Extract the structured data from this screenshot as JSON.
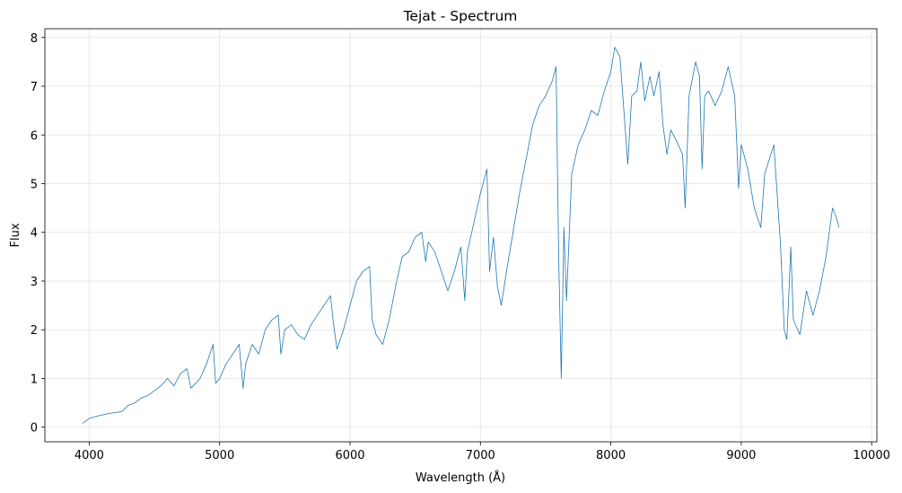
{
  "chart_data": {
    "type": "line",
    "title": "Tejat - Spectrum",
    "x_label": "Wavelength (Å)",
    "y_label": "Flux",
    "color": "#1f77b4",
    "grid": true,
    "xlim": [
      3660,
      10040
    ],
    "ylim": [
      -0.3,
      8.18
    ],
    "xticks": [
      4000,
      5000,
      6000,
      7000,
      8000,
      9000,
      10000
    ],
    "yticks": [
      0,
      1,
      2,
      3,
      4,
      5,
      6,
      7,
      8
    ],
    "x": [
      3950,
      4000,
      4050,
      4100,
      4150,
      4200,
      4250,
      4300,
      4350,
      4400,
      4450,
      4500,
      4550,
      4600,
      4650,
      4700,
      4750,
      4780,
      4850,
      4900,
      4950,
      4970,
      5000,
      5050,
      5100,
      5150,
      5180,
      5200,
      5250,
      5300,
      5350,
      5400,
      5450,
      5470,
      5500,
      5550,
      5600,
      5650,
      5700,
      5750,
      5800,
      5850,
      5870,
      5900,
      5950,
      6000,
      6050,
      6100,
      6150,
      6170,
      6200,
      6250,
      6300,
      6350,
      6400,
      6450,
      6500,
      6550,
      6580,
      6600,
      6650,
      6700,
      6750,
      6800,
      6850,
      6880,
      6900,
      6950,
      7000,
      7050,
      7070,
      7100,
      7130,
      7160,
      7200,
      7250,
      7300,
      7350,
      7400,
      7450,
      7500,
      7550,
      7580,
      7600,
      7620,
      7640,
      7660,
      7700,
      7750,
      7800,
      7850,
      7900,
      7950,
      8000,
      8030,
      8070,
      8100,
      8130,
      8160,
      8200,
      8230,
      8260,
      8300,
      8330,
      8370,
      8400,
      8430,
      8460,
      8500,
      8550,
      8570,
      8600,
      8650,
      8680,
      8700,
      8720,
      8750,
      8800,
      8850,
      8900,
      8950,
      8980,
      9000,
      9050,
      9100,
      9150,
      9180,
      9250,
      9300,
      9330,
      9350,
      9380,
      9400,
      9450,
      9500,
      9550,
      9600,
      9650,
      9700,
      9730,
      9750
    ],
    "values": [
      0.08,
      0.18,
      0.22,
      0.25,
      0.28,
      0.3,
      0.32,
      0.45,
      0.5,
      0.6,
      0.65,
      0.75,
      0.85,
      1.0,
      0.85,
      1.1,
      1.2,
      0.8,
      1.0,
      1.3,
      1.7,
      0.9,
      1.0,
      1.3,
      1.5,
      1.7,
      0.8,
      1.3,
      1.7,
      1.5,
      2.0,
      2.2,
      2.3,
      1.5,
      2.0,
      2.1,
      1.9,
      1.8,
      2.1,
      2.3,
      2.5,
      2.7,
      2.2,
      1.6,
      2.0,
      2.5,
      3.0,
      3.2,
      3.3,
      2.2,
      1.9,
      1.7,
      2.2,
      2.9,
      3.5,
      3.6,
      3.9,
      4.0,
      3.4,
      3.8,
      3.6,
      3.2,
      2.8,
      3.2,
      3.7,
      2.6,
      3.6,
      4.2,
      4.8,
      5.3,
      3.2,
      3.9,
      2.9,
      2.5,
      3.2,
      4.0,
      4.8,
      5.5,
      6.2,
      6.6,
      6.8,
      7.1,
      7.4,
      3.5,
      1.0,
      4.1,
      2.6,
      5.2,
      5.8,
      6.1,
      6.5,
      6.4,
      6.9,
      7.3,
      7.8,
      7.6,
      6.5,
      5.4,
      6.8,
      6.9,
      7.5,
      6.7,
      7.2,
      6.8,
      7.3,
      6.2,
      5.6,
      6.1,
      5.9,
      5.6,
      4.5,
      6.8,
      7.5,
      7.2,
      5.3,
      6.8,
      6.9,
      6.6,
      6.9,
      7.4,
      6.8,
      4.9,
      5.8,
      5.3,
      4.5,
      4.1,
      5.2,
      5.8,
      3.8,
      2.0,
      1.8,
      3.7,
      2.2,
      1.9,
      2.8,
      2.3,
      2.8,
      3.5,
      4.5,
      4.3,
      4.1
    ]
  }
}
